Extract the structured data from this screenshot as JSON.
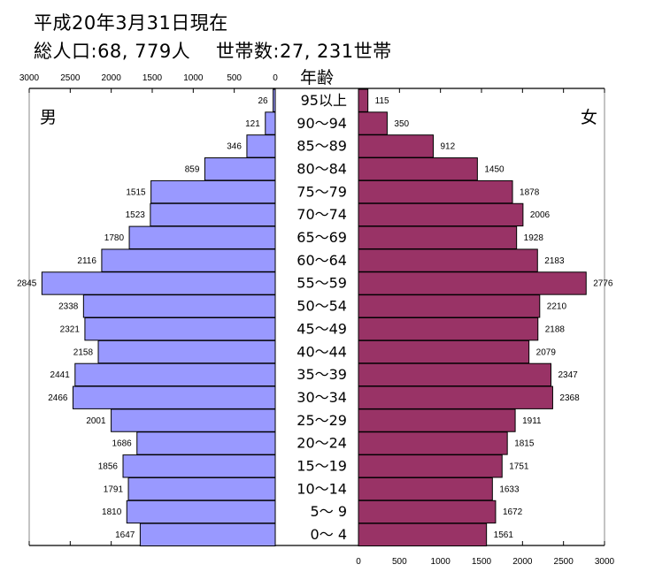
{
  "header": {
    "date_line": "平成20年3月31日現在",
    "population_line": "総人口:68, 779人　 世帯数:27, 231世帯"
  },
  "chart_data": {
    "type": "bar",
    "orientation": "horizontal-pyramid",
    "center_label": "年齢",
    "categories": [
      "95以上",
      "90〜94",
      "85〜89",
      "80〜84",
      "75〜79",
      "70〜74",
      "65〜69",
      "60〜64",
      "55〜59",
      "50〜54",
      "45〜49",
      "40〜44",
      "35〜39",
      "30〜34",
      "25〜29",
      "20〜24",
      "15〜19",
      "10〜14",
      "5〜 9",
      "0〜 4"
    ],
    "series": [
      {
        "name": "男",
        "color": "#9999ff",
        "side": "left",
        "values": [
          26,
          121,
          346,
          859,
          1515,
          1523,
          1780,
          2116,
          2845,
          2338,
          2321,
          2158,
          2441,
          2466,
          2001,
          1686,
          1856,
          1791,
          1810,
          1647
        ]
      },
      {
        "name": "女",
        "color": "#993366",
        "side": "right",
        "values": [
          115,
          350,
          912,
          1450,
          1878,
          2006,
          1928,
          2183,
          2776,
          2210,
          2188,
          2079,
          2347,
          2368,
          1911,
          1815,
          1751,
          1633,
          1672,
          1561
        ]
      }
    ],
    "xlim": [
      0,
      3000
    ],
    "ticks": [
      "0",
      "500",
      "1000",
      "1500",
      "2000",
      "2500",
      "3000"
    ],
    "grid": false,
    "data_labels": true
  }
}
